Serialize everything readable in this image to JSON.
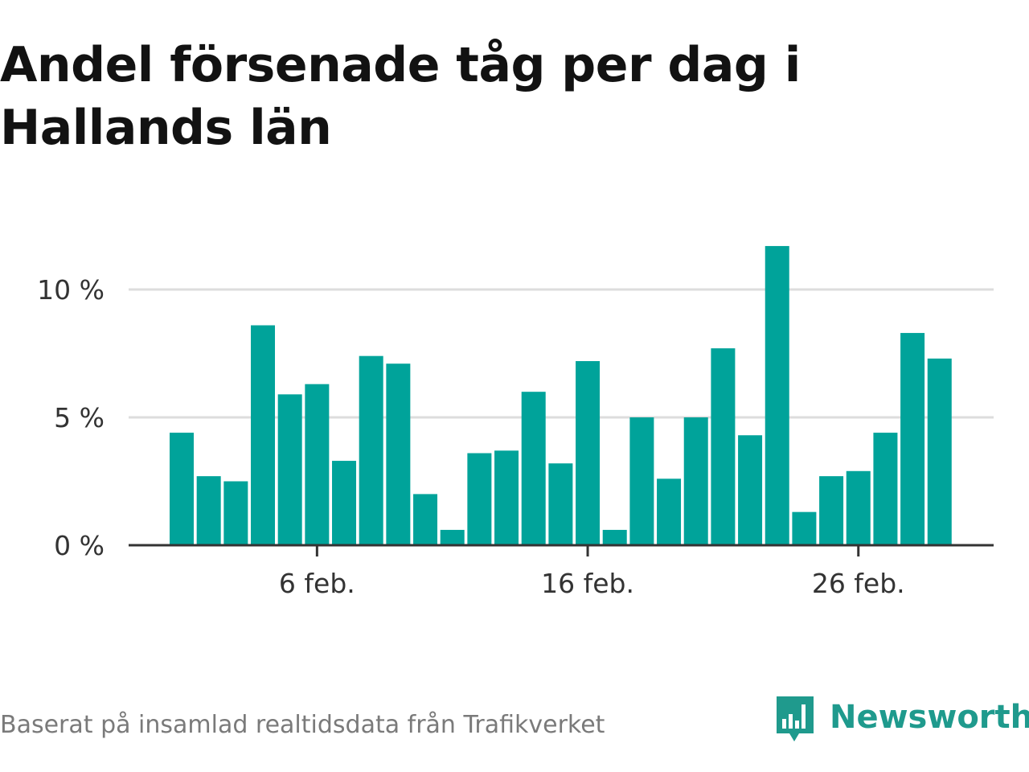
{
  "title": "Andel försenade tåg per dag i Hallands län",
  "source": "Baserat på insamlad realtidsdata från Trafikverket",
  "brand": {
    "name": "Newsworthy",
    "icon": "newsworthy-logo-icon"
  },
  "colors": {
    "bar": "#00a39a",
    "grid": "#dddddd",
    "axis": "#333333",
    "brand": "#1f9a8d"
  },
  "chart_data": {
    "type": "bar",
    "title": "Andel försenade tåg per dag i Hallands län",
    "xlabel": "",
    "ylabel": "",
    "categories": [
      "1 feb.",
      "2 feb.",
      "3 feb.",
      "4 feb.",
      "5 feb.",
      "6 feb.",
      "7 feb.",
      "8 feb.",
      "9 feb.",
      "10 feb.",
      "11 feb.",
      "12 feb.",
      "13 feb.",
      "14 feb.",
      "15 feb.",
      "16 feb.",
      "17 feb.",
      "18 feb.",
      "19 feb.",
      "20 feb.",
      "21 feb.",
      "22 feb.",
      "23 feb.",
      "24 feb.",
      "25 feb.",
      "26 feb.",
      "27 feb.",
      "28 feb.",
      "29 feb."
    ],
    "values": [
      4.4,
      2.7,
      2.5,
      8.6,
      5.9,
      6.3,
      3.3,
      7.4,
      7.1,
      2.0,
      0.6,
      3.6,
      3.7,
      6.0,
      3.2,
      7.2,
      0.6,
      5.0,
      2.6,
      5.0,
      7.7,
      4.3,
      11.7,
      1.3,
      2.7,
      2.9,
      4.4,
      8.3,
      7.3
    ],
    "unit": "%",
    "ylim": [
      0,
      12
    ],
    "yticks": [
      {
        "value": 0,
        "label": "0 %"
      },
      {
        "value": 5,
        "label": "5 %"
      },
      {
        "value": 10,
        "label": "10 %"
      }
    ],
    "xticks": [
      {
        "index": 5,
        "label": "6 feb."
      },
      {
        "index": 15,
        "label": "16 feb."
      },
      {
        "index": 25,
        "label": "26 feb."
      }
    ],
    "grid": true,
    "legend": "none"
  }
}
